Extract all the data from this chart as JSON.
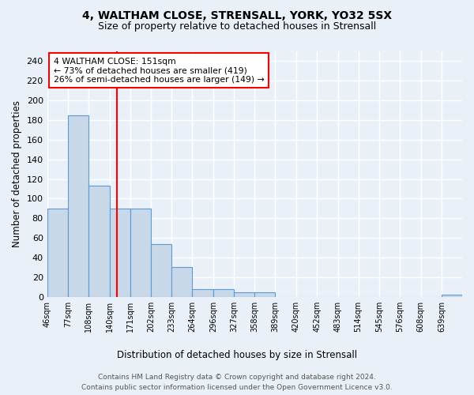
{
  "title1": "4, WALTHAM CLOSE, STRENSALL, YORK, YO32 5SX",
  "title2": "Size of property relative to detached houses in Strensall",
  "xlabel": "Distribution of detached houses by size in Strensall",
  "ylabel": "Number of detached properties",
  "footnote1": "Contains HM Land Registry data © Crown copyright and database right 2024.",
  "footnote2": "Contains public sector information licensed under the Open Government Licence v3.0.",
  "annotation_line1": "4 WALTHAM CLOSE: 151sqm",
  "annotation_line2": "← 73% of detached houses are smaller (419)",
  "annotation_line3": "26% of semi-detached houses are larger (149) →",
  "bar_edges": [
    46,
    77,
    108,
    140,
    171,
    202,
    233,
    264,
    296,
    327,
    358,
    389,
    420,
    452,
    483,
    514,
    545,
    576,
    608,
    639,
    670
  ],
  "bar_heights": [
    90,
    185,
    113,
    90,
    90,
    54,
    30,
    8,
    8,
    5,
    5,
    0,
    0,
    0,
    0,
    0,
    0,
    0,
    0,
    2
  ],
  "bar_color": "#c8d8e8",
  "bar_edge_color": "#5b9bd5",
  "red_line_x": 151,
  "ylim": [
    0,
    250
  ],
  "yticks": [
    0,
    20,
    40,
    60,
    80,
    100,
    120,
    140,
    160,
    180,
    200,
    220,
    240
  ],
  "bg_color": "#eaf0f8",
  "grid_color": "#ffffff"
}
